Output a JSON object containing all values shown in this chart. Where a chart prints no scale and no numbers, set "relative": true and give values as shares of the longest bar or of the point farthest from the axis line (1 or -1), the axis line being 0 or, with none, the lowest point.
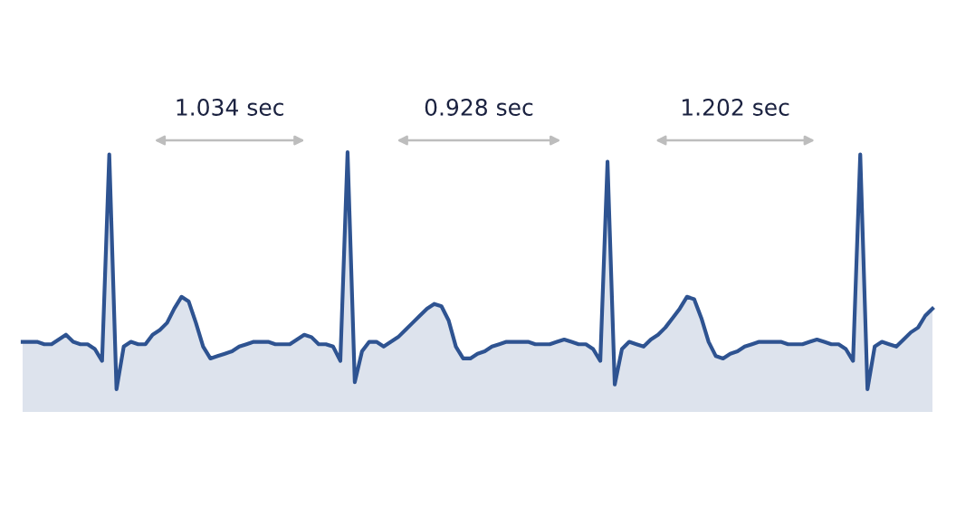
{
  "chart_data": {
    "type": "area",
    "relative": true,
    "tick_labels": false,
    "annotations": [
      "1.034 sec",
      "0.928 sec",
      "1.202 sec"
    ],
    "categories": [
      null,
      null,
      null,
      null,
      null,
      null,
      null,
      null,
      null,
      null,
      null,
      null,
      null,
      null,
      null,
      null,
      null,
      null,
      null,
      null,
      null,
      null,
      null,
      null,
      null,
      null,
      null,
      null,
      null,
      null,
      null,
      null,
      null,
      null,
      null,
      null,
      null,
      null,
      null,
      null,
      null,
      null,
      null,
      null,
      null,
      null,
      null,
      null,
      null,
      null,
      null,
      null,
      null,
      null,
      null,
      null,
      null,
      null,
      null,
      null,
      null,
      null,
      null,
      null,
      null,
      null,
      null,
      null,
      null,
      null,
      null,
      null,
      null,
      null,
      null,
      null,
      null,
      null,
      null,
      null,
      null,
      null,
      null,
      null,
      null,
      null,
      null,
      null,
      null,
      null,
      null,
      null,
      null,
      null,
      null,
      null,
      null,
      null,
      null,
      null,
      null,
      null,
      null,
      null,
      null,
      null,
      null,
      null,
      null,
      null,
      null,
      null,
      null,
      null,
      null,
      null,
      null,
      null,
      null,
      null,
      null,
      null,
      null,
      null,
      null,
      null,
      null
    ],
    "series": [
      {
        "color": "#2e5391",
        "values": [
          0.2,
          0.2,
          0.2,
          0.19,
          0.19,
          0.21,
          0.23,
          0.2,
          0.19,
          0.19,
          0.17,
          0.12,
          0.99,
          0,
          0.18,
          0.2,
          0.19,
          0.19,
          0.23,
          0.25,
          0.28,
          0.34,
          0.39,
          0.37,
          0.28,
          0.18,
          0.13,
          0.14,
          0.15,
          0.16,
          0.18,
          0.19,
          0.2,
          0.2,
          0.2,
          0.19,
          0.19,
          0.19,
          0.21,
          0.23,
          0.22,
          0.19,
          0.19,
          0.18,
          0.12,
          1,
          0.03,
          0.16,
          0.2,
          0.2,
          0.18,
          0.2,
          0.22,
          0.25,
          0.28,
          0.31,
          0.34,
          0.36,
          0.35,
          0.29,
          0.18,
          0.13,
          0.13,
          0.15,
          0.16,
          0.18,
          0.19,
          0.2,
          0.2,
          0.2,
          0.2,
          0.19,
          0.19,
          0.19,
          0.2,
          0.21,
          0.2,
          0.19,
          0.19,
          0.17,
          0.12,
          0.96,
          0.02,
          0.17,
          0.2,
          0.19,
          0.18,
          0.21,
          0.23,
          0.26,
          0.3,
          0.34,
          0.39,
          0.38,
          0.3,
          0.2,
          0.14,
          0.13,
          0.15,
          0.16,
          0.18,
          0.19,
          0.2,
          0.2,
          0.2,
          0.2,
          0.19,
          0.19,
          0.19,
          0.2,
          0.21,
          0.2,
          0.19,
          0.19,
          0.17,
          0.12,
          0.99,
          0,
          0.18,
          0.2,
          0.19,
          0.18,
          0.21,
          0.24,
          0.26,
          0.31,
          0.34
        ]
      }
    ]
  }
}
